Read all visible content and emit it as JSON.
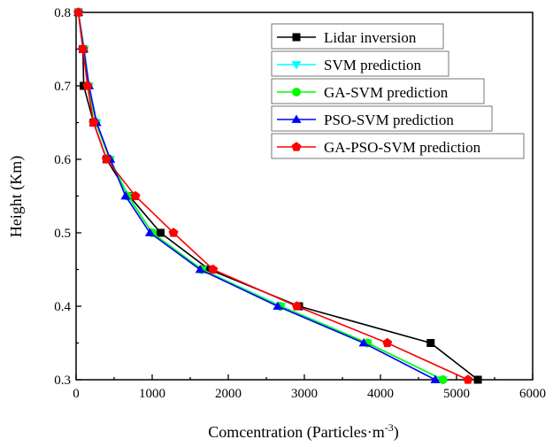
{
  "chart_data": {
    "type": "line",
    "title": "",
    "xlabel": "Comcentration (Particles·m",
    "xlabel_sup": "-3",
    "xlabel_end": ")",
    "ylabel": "Height (Km)",
    "xlim": [
      0,
      6000
    ],
    "ylim": [
      0.3,
      0.8
    ],
    "xticks": [
      0,
      1000,
      2000,
      3000,
      4000,
      5000,
      6000
    ],
    "yticks": [
      0.3,
      0.4,
      0.5,
      0.6,
      0.7,
      0.8
    ],
    "grid": false,
    "legend_position": "top-right",
    "y": [
      0.8,
      0.75,
      0.7,
      0.65,
      0.6,
      0.55,
      0.5,
      0.45,
      0.4,
      0.35,
      0.3
    ],
    "series": [
      {
        "name": "Lidar inversion",
        "color": "#000000",
        "marker": "square",
        "x": [
          30,
          90,
          100,
          230,
          400,
          700,
          1110,
          1750,
          2930,
          4660,
          5280
        ]
      },
      {
        "name": "SVM prediction",
        "color": "#00ffff",
        "marker": "triangle-down",
        "x": [
          30,
          110,
          170,
          270,
          450,
          690,
          1000,
          1660,
          2700,
          3830,
          4820
        ]
      },
      {
        "name": "GA-SVM prediction",
        "color": "#00ff00",
        "marker": "circle",
        "x": [
          30,
          100,
          160,
          260,
          440,
          680,
          1000,
          1650,
          2680,
          3830,
          4820
        ]
      },
      {
        "name": "PSO-SVM prediction",
        "color": "#0000ff",
        "marker": "triangle-up",
        "x": [
          30,
          100,
          170,
          270,
          450,
          650,
          970,
          1630,
          2650,
          3780,
          4720
        ]
      },
      {
        "name": "GA-PSO-SVM prediction",
        "color": "#ff0000",
        "marker": "pentagon",
        "x": [
          30,
          90,
          150,
          230,
          400,
          780,
          1280,
          1800,
          2900,
          4090,
          5150
        ]
      }
    ]
  }
}
